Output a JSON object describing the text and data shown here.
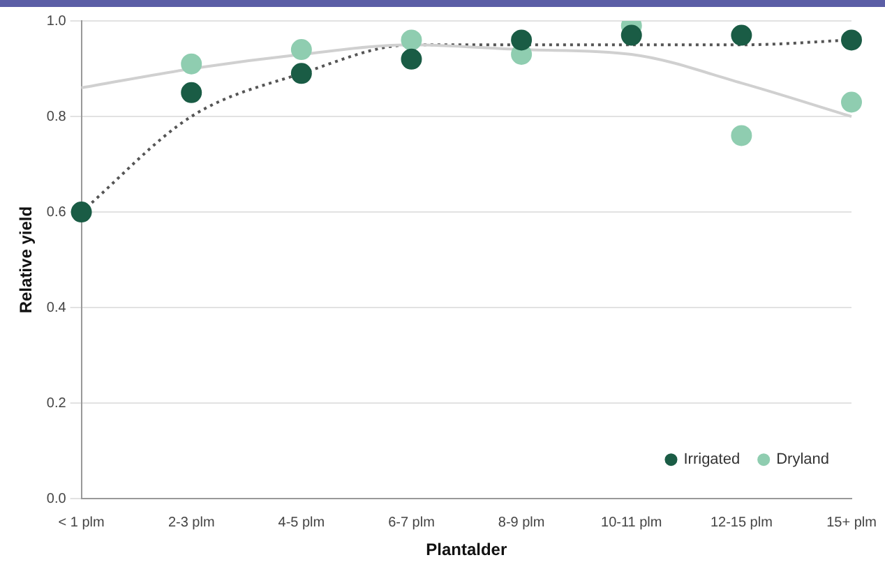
{
  "chart_data": {
    "type": "scatter",
    "xlabel": "Plantalder",
    "ylabel": "Relative yield",
    "categories": [
      "< 1 plm",
      "2-3 plm",
      "4-5 plm",
      "6-7 plm",
      "8-9 plm",
      "10-11 plm",
      "12-15 plm",
      "15+ plm"
    ],
    "series": [
      {
        "type": "line",
        "color": "#d0d0d0",
        "line_style": "solid",
        "marker": "none",
        "values": [
          0.86,
          0.9,
          0.93,
          0.95,
          0.94,
          0.93,
          0.87,
          0.8
        ]
      },
      {
        "type": "line",
        "color": "#555555",
        "line_style": "dotted",
        "marker": "none",
        "values": [
          0.6,
          0.8,
          0.89,
          0.95,
          0.95,
          0.95,
          0.95,
          0.96
        ]
      },
      {
        "name": "Irrigated",
        "color": "#1a5c45",
        "values": [
          0.6,
          0.85,
          0.89,
          0.92,
          0.96,
          0.97,
          0.97,
          0.96
        ]
      },
      {
        "name": "Dryland",
        "color": "#8fcdb0",
        "values": [
          null,
          0.91,
          0.94,
          0.96,
          0.93,
          0.99,
          0.76,
          0.83
        ]
      }
    ],
    "ylim": [
      0,
      1
    ],
    "yticks": [
      {
        "value": 0,
        "label": "0.0"
      },
      0.2,
      0.4,
      0.6,
      0.8,
      {
        "value": 1,
        "label": "1.0"
      }
    ],
    "grid": "y",
    "legend": "bottom right",
    "marker": "circle"
  }
}
